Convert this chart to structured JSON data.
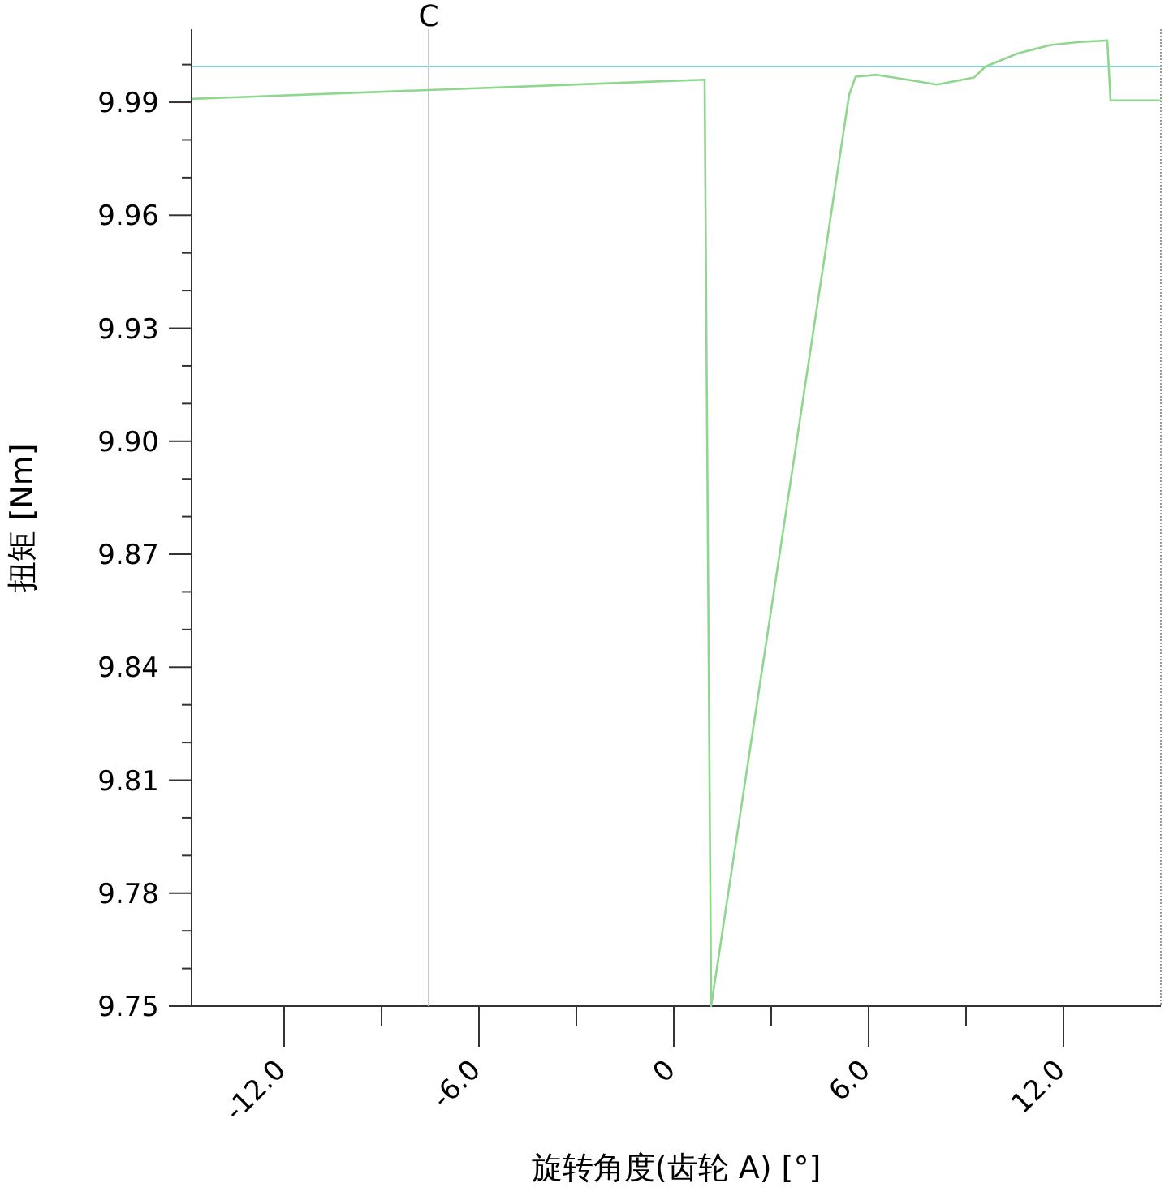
{
  "chart_data": {
    "type": "line",
    "xlabel": "旋转角度(齿轮 A) [°]",
    "ylabel": "扭矩 [Nm]",
    "xlim": [
      -14.85,
      15.0
    ],
    "ylim": [
      9.75,
      10.0094
    ],
    "xticks": [
      {
        "value": -12,
        "label": "-12.0"
      },
      {
        "value": -9,
        "label": null
      },
      {
        "value": -6,
        "label": "-6.0"
      },
      {
        "value": -3,
        "label": null
      },
      0,
      {
        "value": 3,
        "label": null
      },
      {
        "value": 6,
        "label": "6.0"
      },
      {
        "value": 9,
        "label": null
      },
      {
        "value": 12,
        "label": "12.0"
      }
    ],
    "yticks": [
      9.75,
      {
        "value": 9.76,
        "label": null
      },
      {
        "value": 9.77,
        "label": null
      },
      9.78,
      {
        "value": 9.79,
        "label": null
      },
      {
        "value": 9.8,
        "label": null
      },
      9.81,
      {
        "value": 9.82,
        "label": null
      },
      {
        "value": 9.83,
        "label": null
      },
      9.84,
      {
        "value": 9.85,
        "label": null
      },
      {
        "value": 9.86,
        "label": null
      },
      9.87,
      {
        "value": 9.88,
        "label": null
      },
      {
        "value": 9.89,
        "label": null
      },
      {
        "value": 9.9,
        "label": "9.90"
      },
      {
        "value": 9.91,
        "label": null
      },
      {
        "value": 9.92,
        "label": null
      },
      9.93,
      {
        "value": 9.94,
        "label": null
      },
      {
        "value": 9.95,
        "label": null
      },
      9.96,
      {
        "value": 9.97,
        "label": null
      },
      {
        "value": 9.98,
        "label": null
      },
      9.99,
      {
        "value": 10.0,
        "label": null
      }
    ],
    "grid": false,
    "marker": "none",
    "line_style": "solid",
    "ref_lines": [
      {
        "axis": "y",
        "value": 9.9995,
        "label": null,
        "color": "#86cdd6"
      },
      {
        "axis": "x",
        "value": -7.55,
        "label": "C",
        "color": "#c8c8c8"
      }
    ],
    "series": [
      {
        "color": "#8fd68f",
        "x": [
          -14.85,
          0.95,
          1.15,
          5.4,
          5.6,
          6.25,
          7.2,
          8.1,
          9.25,
          9.6,
          10.6,
          11.6,
          12.5,
          13.35,
          13.45,
          15.0
        ],
        "values": [
          9.9909,
          9.996,
          9.75,
          9.992,
          9.9968,
          9.9973,
          9.996,
          9.9947,
          9.9966,
          9.9995,
          10.003,
          10.0052,
          10.006,
          10.0064,
          9.9905,
          9.9905
        ]
      }
    ]
  }
}
